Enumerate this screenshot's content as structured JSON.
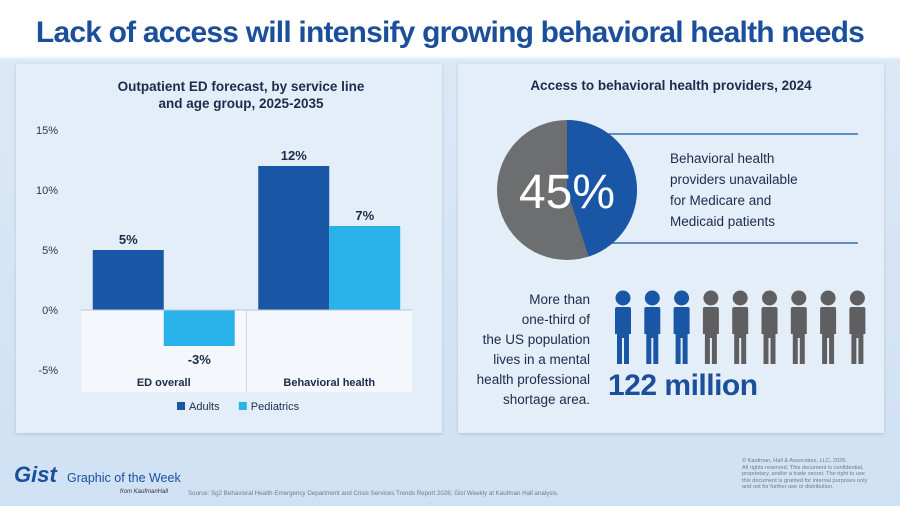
{
  "title": "Lack of access will intensify growing behavioral health needs",
  "left_panel": {
    "title_line1": "Outpatient ED forecast, by service line",
    "title_line2": "and age group, 2025-2035"
  },
  "chart_data": {
    "type": "bar",
    "title": "Outpatient ED forecast, by service line and age group, 2025-2035",
    "categories": [
      "ED overall",
      "Behavioral health"
    ],
    "series": [
      {
        "name": "Adults",
        "values": [
          5,
          12
        ],
        "labels": [
          "5%",
          "12%"
        ],
        "color": "#1a56a6"
      },
      {
        "name": "Pediatrics",
        "values": [
          -3,
          7
        ],
        "labels": [
          "-3%",
          "7%"
        ],
        "color": "#29b2ea"
      }
    ],
    "ylim": [
      -5,
      15
    ],
    "yticks": [
      15,
      10,
      5,
      0,
      -5
    ],
    "ytick_labels": [
      "15%",
      "10%",
      "5%",
      "0%",
      "-5%"
    ],
    "legend_position": "bottom",
    "grid": false
  },
  "right_panel": {
    "title": "Access to behavioral health providers, 2024",
    "pie": {
      "value": 45,
      "label": "45%",
      "highlight_color": "#1a56a6",
      "rest_color": "#6d6e70"
    },
    "pie_description": [
      "Behavioral health",
      "providers unavailable",
      "for Medicare and",
      "Medicaid patients"
    ],
    "population_description": [
      "More than",
      "one-third of",
      "the US population",
      "lives in a mental",
      "health professional",
      "shortage area."
    ],
    "people_icons": {
      "total": 9,
      "highlighted": 3,
      "highlight_color": "#1a56a6",
      "rest_color": "#5f5f61",
      "icon": "person-icon"
    },
    "big_number": "122 million"
  },
  "footer": {
    "logo": "Gist",
    "logo_subtitle": "Graphic of the Week",
    "logo_from": "from KaufmanHall",
    "source": "Source: Sg2 Behavioral Health Emergency Department and Crisis Services Trends Report 2026; Gist Weekly at Kaufman Hall analysis.",
    "copyright": [
      "© Kaufman, Hall & Associates, LLC, 2026.",
      "All rights reserved. This document is confidential,",
      "proprietary, and/or a trade secret. The right to use",
      "this document is granted for internal purposes only",
      "and not for further use or distribution."
    ]
  }
}
